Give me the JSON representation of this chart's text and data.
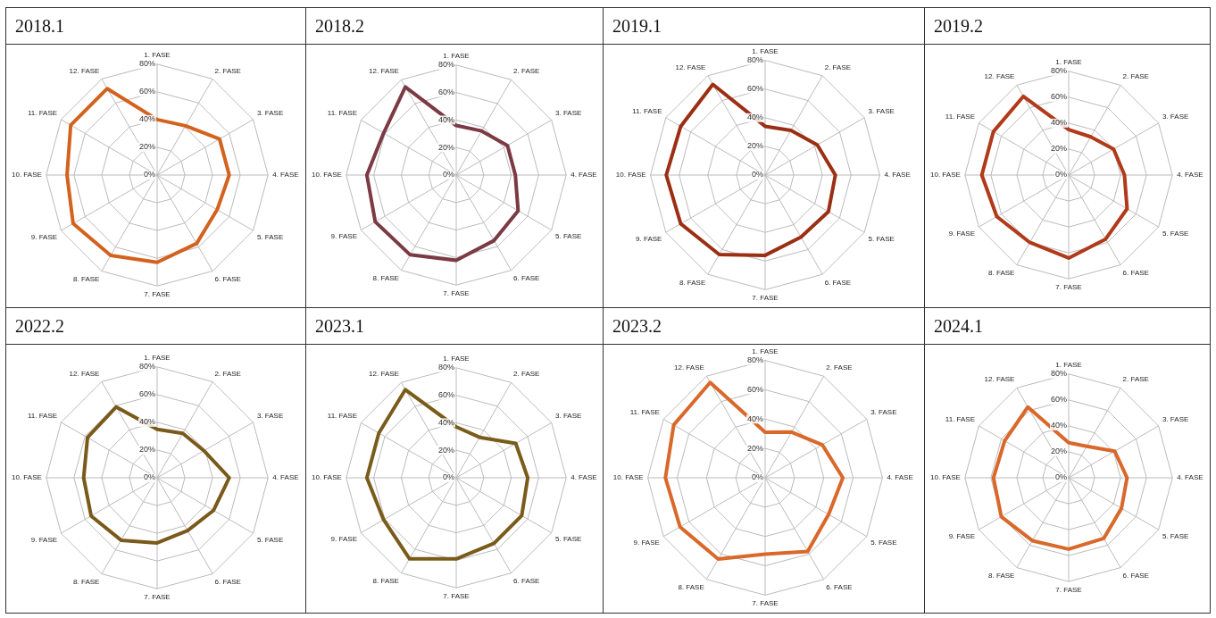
{
  "chart_data": [
    {
      "type": "radar",
      "title": "2018.1",
      "categories": [
        "1. FASE",
        "2. FASE",
        "3. FASE",
        "4. FASE",
        "5. FASE",
        "6. FASE",
        "7. FASE",
        "8. FASE",
        "9. FASE",
        "10. FASE",
        "11. FASE",
        "12. FASE"
      ],
      "series": [
        {
          "color": "#d4621f",
          "values": [
            40,
            41,
            52,
            52,
            50,
            57,
            63,
            67,
            70,
            65,
            72,
            72
          ]
        }
      ],
      "ylim": [
        0,
        80
      ],
      "yticks": [
        {
          "value": 0,
          "label": "0%"
        },
        {
          "value": 20,
          "label": "20%"
        },
        {
          "value": 40,
          "label": "40%"
        },
        {
          "value": 60,
          "label": "60%"
        },
        {
          "value": 80,
          "label": "80%"
        }
      ],
      "grid": true,
      "marker": "none"
    },
    {
      "type": "radar",
      "title": "2018.2",
      "categories": [
        "1. FASE",
        "2. FASE",
        "3. FASE",
        "4. FASE",
        "5. FASE",
        "6. FASE",
        "7. FASE",
        "8. FASE",
        "9. FASE",
        "10. FASE",
        "11. FASE",
        "12. FASE"
      ],
      "series": [
        {
          "color": "#7b3a44",
          "values": [
            36,
            37,
            43,
            43,
            52,
            55,
            62,
            67,
            68,
            65,
            61,
            74
          ]
        }
      ],
      "ylim": [
        0,
        80
      ],
      "yticks": [
        {
          "value": 0,
          "label": "0%"
        },
        {
          "value": 20,
          "label": "20%"
        },
        {
          "value": 40,
          "label": "40%"
        },
        {
          "value": 60,
          "label": "60%"
        },
        {
          "value": 80,
          "label": "80%"
        }
      ],
      "grid": true,
      "marker": "none"
    },
    {
      "type": "radar",
      "title": "2019.1",
      "categories": [
        "1. FASE",
        "2. FASE",
        "3. FASE",
        "4. FASE",
        "5. FASE",
        "6. FASE",
        "7. FASE",
        "8. FASE",
        "9. FASE",
        "10. FASE",
        "11. FASE",
        "12. FASE"
      ],
      "series": [
        {
          "color": "#9b2f14",
          "values": [
            34,
            36,
            42,
            49,
            51,
            50,
            56,
            64,
            68,
            69,
            68,
            73
          ]
        }
      ],
      "ylim": [
        0,
        80
      ],
      "yticks": [
        {
          "value": 0,
          "label": "0%"
        },
        {
          "value": 20,
          "label": "20%"
        },
        {
          "value": 40,
          "label": "40%"
        },
        {
          "value": 60,
          "label": "60%"
        },
        {
          "value": 80,
          "label": "80%"
        }
      ],
      "grid": true,
      "marker": "none"
    },
    {
      "type": "radar",
      "title": "2019.2",
      "categories": [
        "1. FASE",
        "2. FASE",
        "3. FASE",
        "4. FASE",
        "5. FASE",
        "6. FASE",
        "7. FASE",
        "8. FASE",
        "9. FASE",
        "10. FASE",
        "11. FASE",
        "12. FASE"
      ],
      "series": [
        {
          "color": "#b03a1a",
          "values": [
            35,
            34,
            40,
            43,
            52,
            57,
            64,
            60,
            64,
            67,
            67,
            70
          ]
        }
      ],
      "ylim": [
        0,
        80
      ],
      "yticks": [
        {
          "value": 0,
          "label": "0%"
        },
        {
          "value": 20,
          "label": "20%"
        },
        {
          "value": 40,
          "label": "40%"
        },
        {
          "value": 60,
          "label": "60%"
        },
        {
          "value": 80,
          "label": "80%"
        }
      ],
      "grid": true,
      "marker": "none"
    },
    {
      "type": "radar",
      "title": "2022.2",
      "categories": [
        "1. FASE",
        "2. FASE",
        "3. FASE",
        "4. FASE",
        "5. FASE",
        "6. FASE",
        "7. FASE",
        "8. FASE",
        "9. FASE",
        "10. FASE",
        "11. FASE",
        "12. FASE"
      ],
      "series": [
        {
          "color": "#7a5a1a",
          "values": [
            35,
            37,
            39,
            52,
            47,
            44,
            47,
            52,
            55,
            53,
            58,
            59
          ]
        }
      ],
      "ylim": [
        0,
        80
      ],
      "yticks": [
        {
          "value": 0,
          "label": "0%"
        },
        {
          "value": 20,
          "label": "20%"
        },
        {
          "value": 40,
          "label": "40%"
        },
        {
          "value": 60,
          "label": "60%"
        },
        {
          "value": 80,
          "label": "80%"
        }
      ],
      "grid": true,
      "marker": "none"
    },
    {
      "type": "radar",
      "title": "2023.1",
      "categories": [
        "1. FASE",
        "2. FASE",
        "3. FASE",
        "4. FASE",
        "5. FASE",
        "6. FASE",
        "7. FASE",
        "8. FASE",
        "9. FASE",
        "10. FASE",
        "11. FASE",
        "12. FASE"
      ],
      "series": [
        {
          "color": "#7a5c1a",
          "values": [
            37,
            34,
            50,
            52,
            55,
            55,
            59,
            68,
            61,
            65,
            65,
            74
          ]
        }
      ],
      "ylim": [
        0,
        80
      ],
      "yticks": [
        {
          "value": 0,
          "label": "0%"
        },
        {
          "value": 20,
          "label": "20%"
        },
        {
          "value": 40,
          "label": "40%"
        },
        {
          "value": 60,
          "label": "60%"
        },
        {
          "value": 80,
          "label": "80%"
        }
      ],
      "grid": true,
      "marker": "none"
    },
    {
      "type": "radar",
      "title": "2023.2",
      "categories": [
        "1. FASE",
        "2. FASE",
        "3. FASE",
        "4. FASE",
        "5. FASE",
        "6. FASE",
        "7. FASE",
        "8. FASE",
        "9. FASE",
        "10. FASE",
        "11. FASE",
        "12. FASE"
      ],
      "series": [
        {
          "color": "#d9682a",
          "values": [
            31,
            36,
            45,
            53,
            50,
            58,
            52,
            64,
            67,
            68,
            72,
            75
          ]
        }
      ],
      "ylim": [
        0,
        80
      ],
      "yticks": [
        {
          "value": 0,
          "label": "0%"
        },
        {
          "value": 20,
          "label": "20%"
        },
        {
          "value": 40,
          "label": "40%"
        },
        {
          "value": 60,
          "label": "60%"
        },
        {
          "value": 80,
          "label": "80%"
        }
      ],
      "grid": true,
      "marker": "none"
    },
    {
      "type": "radar",
      "title": "2024.1",
      "categories": [
        "1. FASE",
        "2. FASE",
        "3. FASE",
        "4. FASE",
        "5. FASE",
        "6. FASE",
        "7. FASE",
        "8. FASE",
        "9. FASE",
        "10. FASE",
        "11. FASE",
        "12. FASE"
      ],
      "series": [
        {
          "color": "#d9682a",
          "values": [
            27,
            28,
            41,
            45,
            47,
            54,
            55,
            56,
            60,
            58,
            57,
            63
          ]
        }
      ],
      "ylim": [
        0,
        80
      ],
      "yticks": [
        {
          "value": 0,
          "label": "0%"
        },
        {
          "value": 20,
          "label": "20%"
        },
        {
          "value": 40,
          "label": "40%"
        },
        {
          "value": 60,
          "label": "60%"
        },
        {
          "value": 80,
          "label": "80%"
        }
      ],
      "grid": true,
      "marker": "none"
    }
  ]
}
